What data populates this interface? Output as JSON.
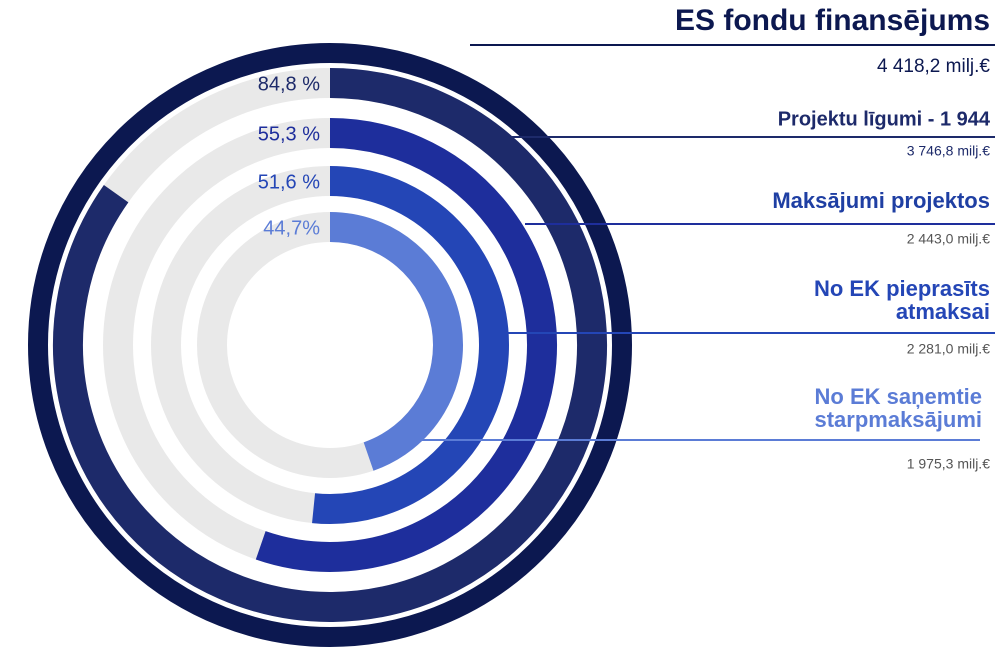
{
  "chart_data": {
    "type": "radial_bar",
    "title": "ES fondu finansējums",
    "title_amount": "4 418,2 milj.€",
    "total_color": "#0c1850",
    "ylim": [
      0,
      100
    ],
    "categories": [
      [
        "Projektu līgumi - 1 944"
      ],
      [
        "Maksājumi projektos"
      ],
      [
        "No EK pieprasīts",
        "atmaksai"
      ],
      [
        "No EK saņemtie",
        "starpmaksājumi"
      ]
    ],
    "values": [
      84.8,
      55.3,
      51.6,
      44.7
    ],
    "value_labels": [
      "84,8 %",
      "55,3 %",
      "51,6 %",
      "44,7%"
    ],
    "amount_labels": [
      "3 746,8  milj.€",
      "2 443,0 milj.€",
      "2 281,0 milj.€",
      "1 975,3 milj.€"
    ],
    "colors": [
      "#1d2a6a",
      "#1e2e9c",
      "#2446b6",
      "#5b7cd6"
    ]
  }
}
